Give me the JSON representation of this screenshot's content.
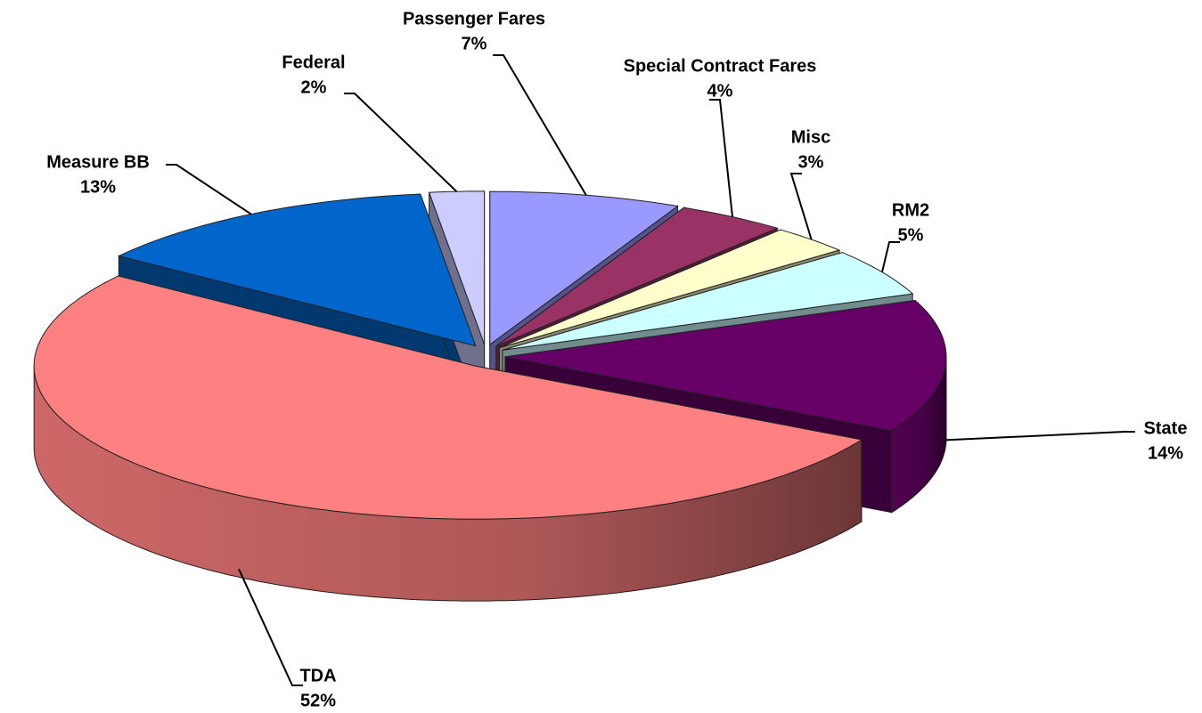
{
  "chart_data": {
    "type": "pie",
    "categories": [
      "Passenger Fares",
      "Special Contract Fares",
      "Misc",
      "RM2",
      "State",
      "TDA",
      "Measure BB",
      "Federal"
    ],
    "values": [
      7,
      4,
      3,
      5,
      14,
      52,
      13,
      2
    ],
    "value_labels": [
      "7%",
      "4%",
      "3%",
      "5%",
      "14%",
      "52%",
      "13%",
      "2%"
    ],
    "colors": [
      "#9999ff",
      "#993366",
      "#ffffcc",
      "#ccffff",
      "#660066",
      "#ff8080",
      "#0066cc",
      "#ccccff"
    ]
  }
}
